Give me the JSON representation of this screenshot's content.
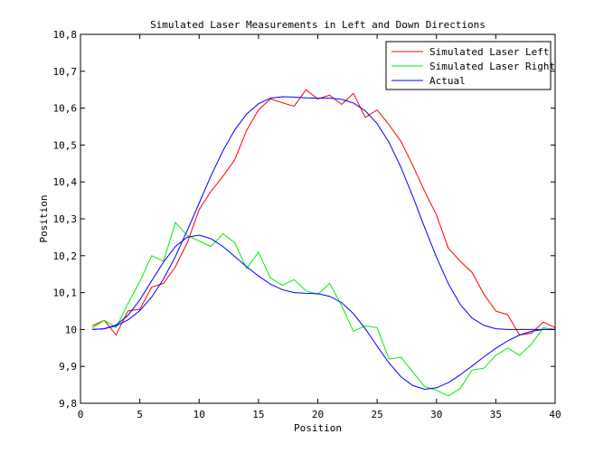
{
  "chart_data": {
    "type": "line",
    "title": "Simulated Laser Measurements in Left and Down Directions",
    "xlabel": "Position",
    "ylabel": "Position",
    "xlim": [
      0,
      40
    ],
    "ylim": [
      9.8,
      10.8
    ],
    "xticks": [
      0,
      5,
      10,
      15,
      20,
      25,
      30,
      35,
      40
    ],
    "yticks": [
      9.8,
      9.9,
      10,
      10.1,
      10.2,
      10.3,
      10.4,
      10.5,
      10.6,
      10.7,
      10.8
    ],
    "ytick_labels": [
      "9,8",
      "9,9",
      "10",
      "10,1",
      "10,2",
      "10,3",
      "10,4",
      "10,5",
      "10,6",
      "10,7",
      "10,8"
    ],
    "legend_position": "top-right",
    "series": [
      {
        "name": "Simulated Laser Left",
        "color": "#ff0000",
        "x": [
          1,
          2,
          3,
          4,
          5,
          6,
          7,
          8,
          9,
          10,
          11,
          12,
          13,
          14,
          15,
          16,
          17,
          18,
          19,
          20,
          21,
          22,
          23,
          24,
          25,
          26,
          27,
          28,
          29,
          30,
          31,
          32,
          33,
          34,
          35,
          36,
          37,
          38,
          39,
          40
        ],
        "y": [
          10.01,
          10.025,
          9.985,
          10.05,
          10.055,
          10.115,
          10.125,
          10.17,
          10.235,
          10.325,
          10.375,
          10.415,
          10.46,
          10.54,
          10.595,
          10.625,
          10.615,
          10.605,
          10.65,
          10.625,
          10.635,
          10.61,
          10.64,
          10.575,
          10.595,
          10.555,
          10.51,
          10.445,
          10.375,
          10.31,
          10.22,
          10.185,
          10.155,
          10.095,
          10.05,
          10.04,
          9.985,
          9.99,
          10.02,
          10.005
        ]
      },
      {
        "name": "Simulated Laser Right",
        "color": "#00ee00",
        "x": [
          1,
          2,
          3,
          4,
          5,
          6,
          7,
          8,
          9,
          10,
          11,
          12,
          13,
          14,
          15,
          16,
          17,
          18,
          19,
          20,
          21,
          22,
          23,
          24,
          25,
          26,
          27,
          28,
          29,
          30,
          31,
          32,
          33,
          34,
          35,
          36,
          37,
          38,
          39,
          40
        ],
        "y": [
          10.005,
          10.025,
          10.005,
          10.07,
          10.13,
          10.2,
          10.185,
          10.29,
          10.255,
          10.24,
          10.225,
          10.26,
          10.235,
          10.165,
          10.21,
          10.14,
          10.12,
          10.135,
          10.105,
          10.095,
          10.125,
          10.065,
          9.995,
          10.01,
          10.005,
          9.92,
          9.925,
          9.885,
          9.845,
          9.835,
          9.82,
          9.84,
          9.89,
          9.895,
          9.93,
          9.95,
          9.93,
          9.96,
          10.005,
          10.0
        ]
      },
      {
        "name": "Actual",
        "color": "#0000ff",
        "x": [
          1,
          2,
          3,
          4,
          5,
          6,
          7,
          8,
          9,
          10,
          11,
          12,
          13,
          14,
          15,
          16,
          17,
          18,
          19,
          20,
          21,
          22,
          23,
          24,
          25,
          26,
          27,
          28,
          29,
          30,
          31,
          32,
          33,
          34,
          35,
          36,
          37,
          38,
          39,
          40
        ],
        "y": [
          10.0,
          10.002,
          10.01,
          10.026,
          10.051,
          10.088,
          10.137,
          10.198,
          10.268,
          10.343,
          10.417,
          10.484,
          10.541,
          10.584,
          10.612,
          10.627,
          10.631,
          10.63,
          10.628,
          10.627,
          10.627,
          10.624,
          10.614,
          10.593,
          10.558,
          10.507,
          10.44,
          10.361,
          10.277,
          10.196,
          10.124,
          10.068,
          10.031,
          10.011,
          10.002,
          10.0,
          10.0,
          10.0,
          10.0,
          10.0
        ]
      },
      {
        "name": "",
        "color": "#0000ff",
        "x": [
          1,
          2,
          3,
          4,
          5,
          6,
          7,
          8,
          9,
          10,
          11,
          12,
          13,
          14,
          15,
          16,
          17,
          18,
          19,
          20,
          21,
          22,
          23,
          24,
          25,
          26,
          27,
          28,
          29,
          30,
          31,
          32,
          33,
          34,
          35,
          36,
          37,
          38,
          39,
          40
        ],
        "y": [
          10.0,
          10.002,
          10.012,
          10.038,
          10.08,
          10.132,
          10.183,
          10.225,
          10.25,
          10.256,
          10.246,
          10.225,
          10.198,
          10.17,
          10.145,
          10.123,
          10.108,
          10.1,
          10.098,
          10.097,
          10.09,
          10.073,
          10.043,
          10.002,
          9.955,
          9.909,
          9.872,
          9.848,
          9.838,
          9.842,
          9.856,
          9.877,
          9.901,
          9.926,
          9.949,
          9.969,
          9.985,
          9.995,
          10.0,
          10.0
        ]
      }
    ]
  }
}
